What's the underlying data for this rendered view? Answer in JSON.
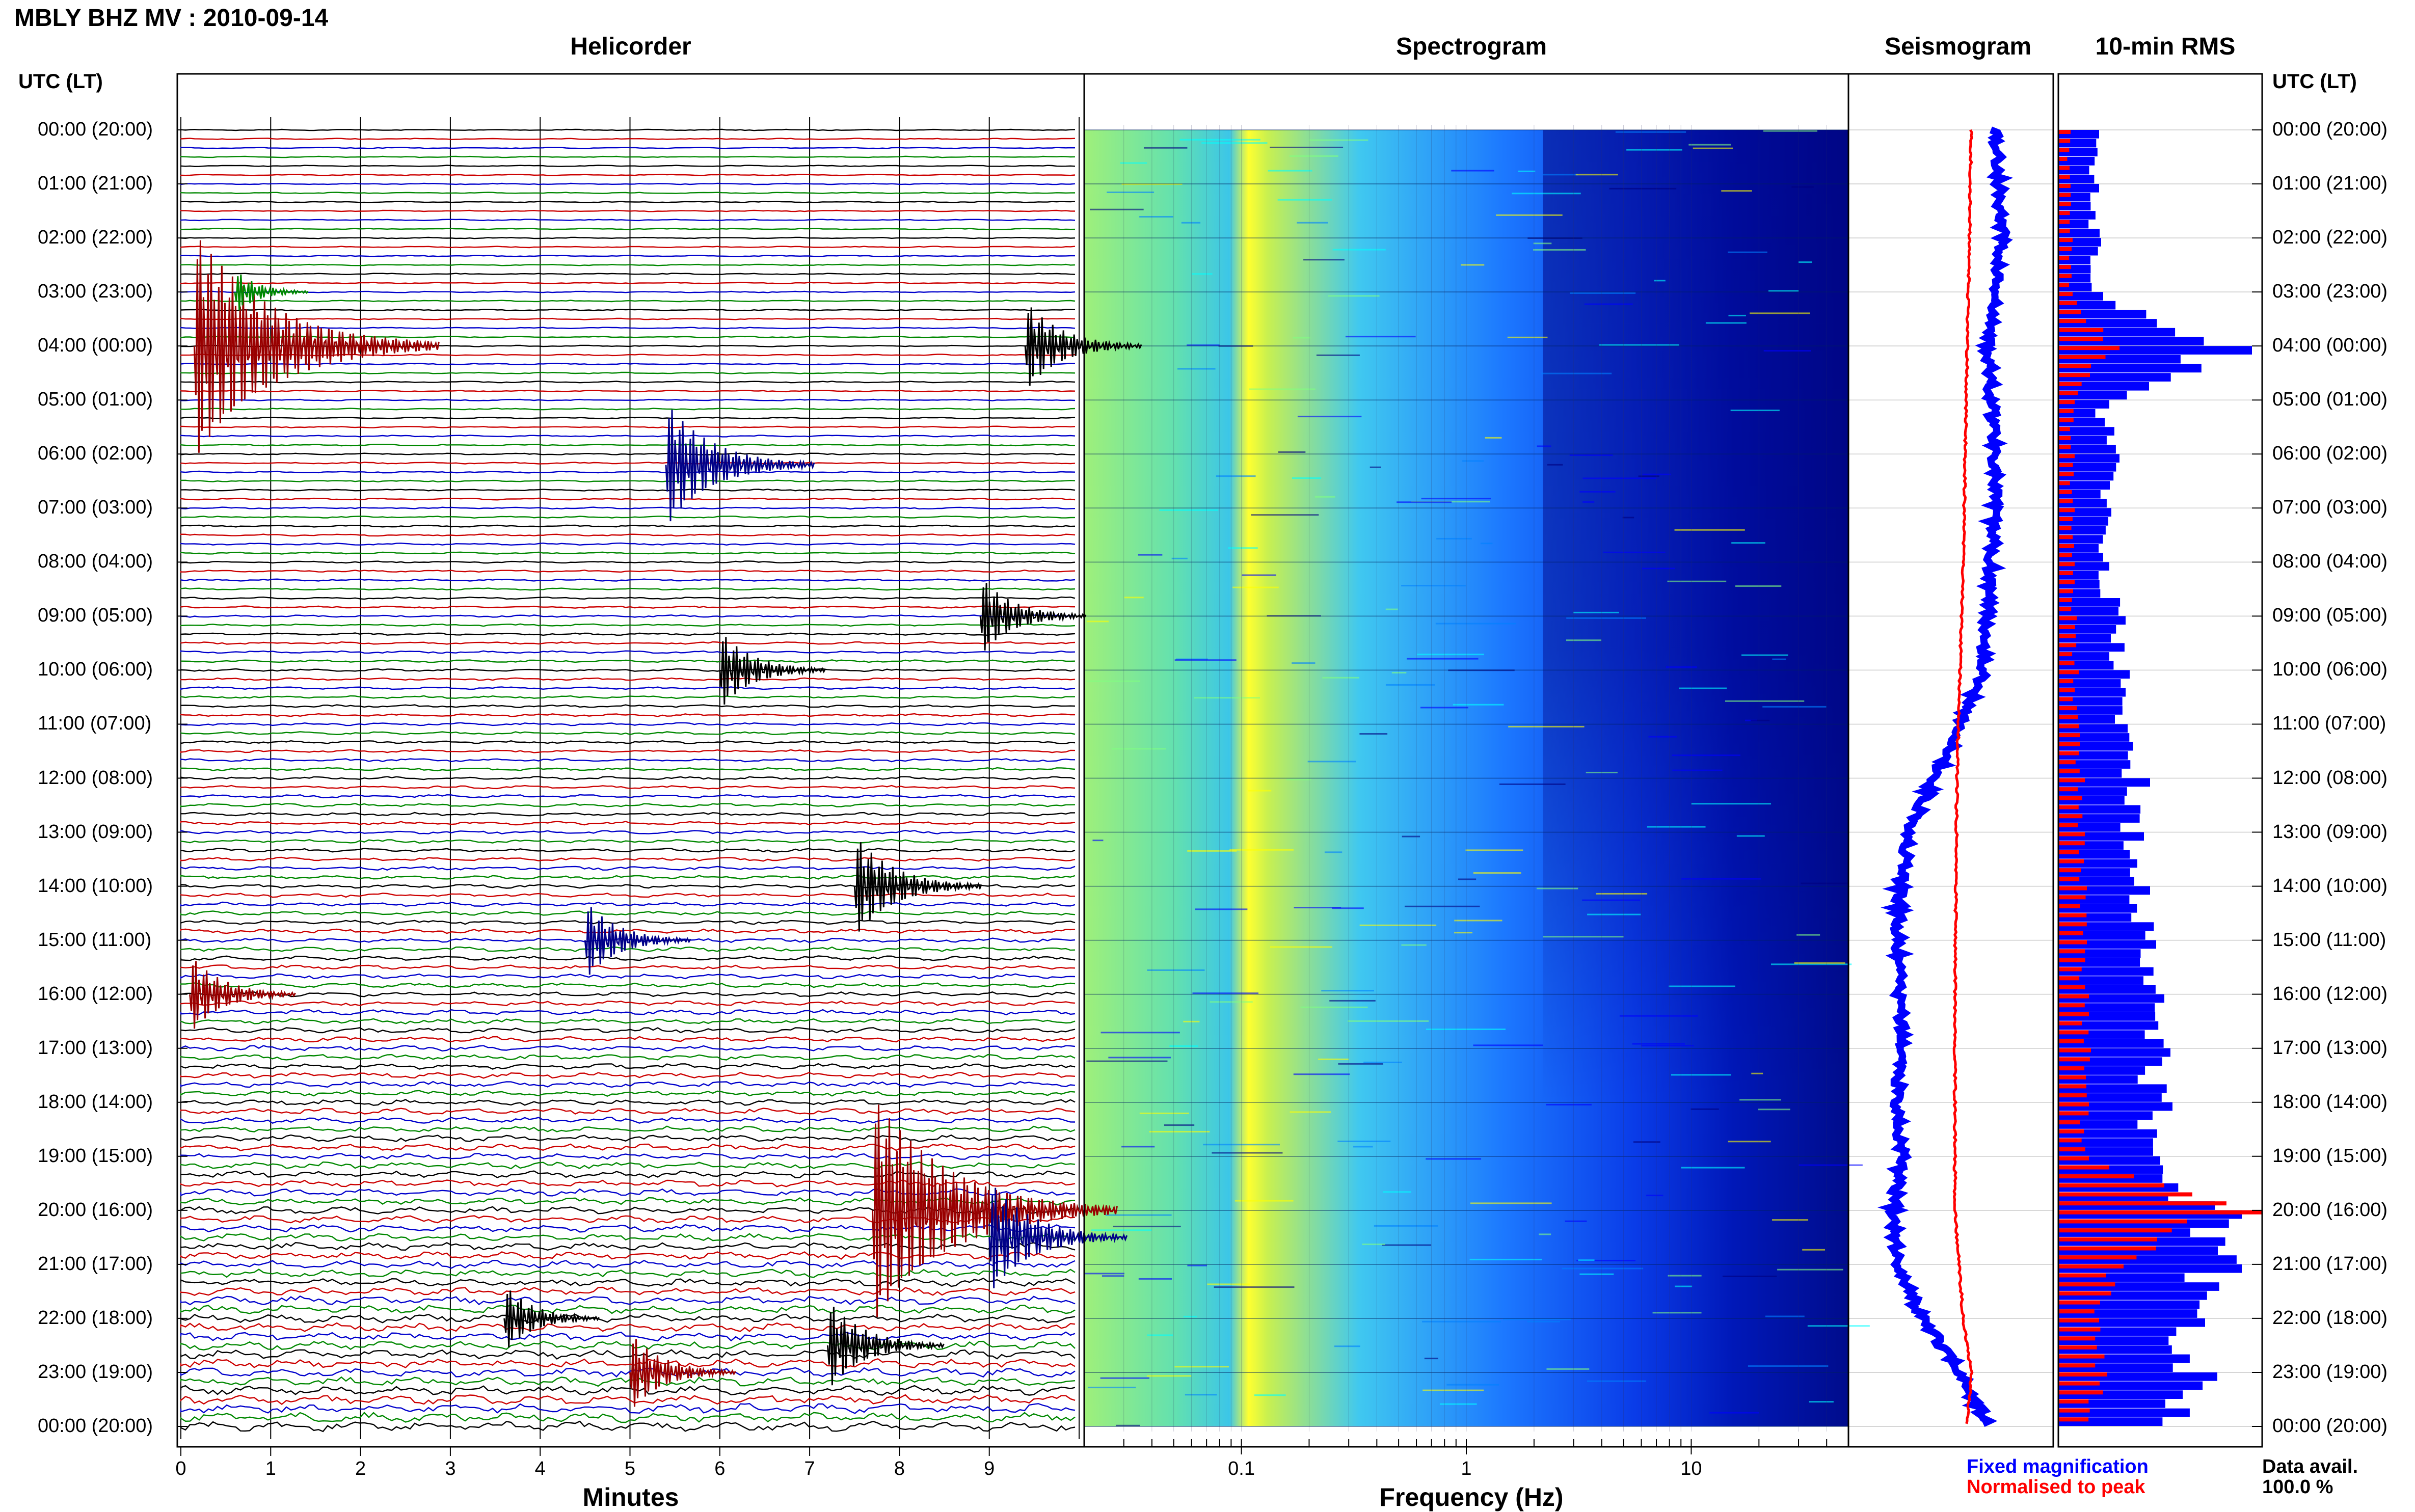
{
  "header": {
    "station_title": "MBLY BHZ MV : 2010-09-14",
    "utc_lt_label": "UTC (LT)"
  },
  "panels": {
    "helicorder": "Helicorder",
    "spectrogram": "Spectrogram",
    "seismogram": "Seismogram",
    "rms": "10-min RMS"
  },
  "time_labels": [
    "00:00 (20:00)",
    "01:00 (21:00)",
    "02:00 (22:00)",
    "03:00 (23:00)",
    "04:00 (00:00)",
    "05:00 (01:00)",
    "06:00 (02:00)",
    "07:00 (03:00)",
    "08:00 (04:00)",
    "09:00 (05:00)",
    "10:00 (06:00)",
    "11:00 (07:00)",
    "12:00 (08:00)",
    "13:00 (09:00)",
    "14:00 (10:00)",
    "15:00 (11:00)",
    "16:00 (12:00)",
    "17:00 (13:00)",
    "18:00 (14:00)",
    "19:00 (15:00)",
    "20:00 (16:00)",
    "21:00 (17:00)",
    "22:00 (18:00)",
    "23:00 (19:00)",
    "00:00 (20:00)"
  ],
  "legend": {
    "fixed": "Fixed magnification",
    "normalised": "Normalised to peak",
    "data_avail_label": "Data avail.",
    "data_avail_value": "100.0 %",
    "fixed_color": "#0000ff",
    "normalised_color": "#ff0000"
  },
  "chart_data": [
    {
      "type": "line",
      "title": "Helicorder",
      "xlabel": "Minutes",
      "xlim": [
        0,
        10
      ],
      "x_ticks": [
        "0",
        "1",
        "2",
        "3",
        "4",
        "5",
        "6",
        "7",
        "8",
        "9"
      ],
      "ylabel": "UTC (LT)",
      "rows_per_hour": 6,
      "row_colors": [
        "#000000",
        "#cc0000",
        "#0000cc",
        "#008800"
      ],
      "events": [
        {
          "hour": 4.0,
          "minute": 0.15,
          "amplitude": 1.0,
          "color": "#990000"
        },
        {
          "hour": 3.0,
          "minute": 0.6,
          "amplitude": 0.2,
          "color": "#008800"
        },
        {
          "hour": 4.0,
          "minute": 9.4,
          "amplitude": 0.4,
          "color": "#000000"
        },
        {
          "hour": 6.2,
          "minute": 5.4,
          "amplitude": 0.55,
          "color": "#000088"
        },
        {
          "hour": 9.0,
          "minute": 8.9,
          "amplitude": 0.35,
          "color": "#000000"
        },
        {
          "hour": 10.0,
          "minute": 6.0,
          "amplitude": 0.35,
          "color": "#000000"
        },
        {
          "hour": 14.0,
          "minute": 7.5,
          "amplitude": 0.45,
          "color": "#000000"
        },
        {
          "hour": 15.0,
          "minute": 4.5,
          "amplitude": 0.35,
          "color": "#000088"
        },
        {
          "hour": 16.0,
          "minute": 0.1,
          "amplitude": 0.35,
          "color": "#990000"
        },
        {
          "hour": 20.0,
          "minute": 7.7,
          "amplitude": 1.0,
          "color": "#990000"
        },
        {
          "hour": 20.5,
          "minute": 9.0,
          "amplitude": 0.5,
          "color": "#000088"
        },
        {
          "hour": 22.0,
          "minute": 3.6,
          "amplitude": 0.3,
          "color": "#000000"
        },
        {
          "hour": 22.5,
          "minute": 7.2,
          "amplitude": 0.4,
          "color": "#000000"
        },
        {
          "hour": 23.0,
          "minute": 5.0,
          "amplitude": 0.35,
          "color": "#990000"
        }
      ]
    },
    {
      "type": "heatmap",
      "title": "Spectrogram",
      "xlabel": "Frequency (Hz)",
      "x_scale": "log",
      "xlim": [
        0.02,
        50
      ],
      "x_ticks": [
        0.1,
        1,
        10
      ],
      "x_tick_labels": [
        "0.1",
        "1",
        "10"
      ],
      "colormap": [
        "#00007f",
        "#0000ff",
        "#0080ff",
        "#00ffff",
        "#80ff80",
        "#ffff00"
      ]
    },
    {
      "type": "line",
      "title": "Seismogram",
      "series": [
        {
          "name": "Fixed magnification",
          "color": "#0000ff",
          "hours": [
            0,
            2,
            4,
            6,
            8,
            10,
            11,
            12,
            13,
            14,
            15,
            16,
            17,
            18,
            19,
            20,
            21,
            22,
            23,
            24
          ],
          "values": [
            0.72,
            0.75,
            0.68,
            0.72,
            0.7,
            0.66,
            0.55,
            0.42,
            0.3,
            0.25,
            0.24,
            0.25,
            0.26,
            0.24,
            0.26,
            0.22,
            0.24,
            0.36,
            0.55,
            0.68
          ]
        },
        {
          "name": "Normalised to peak",
          "color": "#ff0000",
          "hours": [
            0,
            4,
            8,
            12,
            16,
            20,
            22,
            23,
            24
          ],
          "values": [
            0.6,
            0.58,
            0.56,
            0.53,
            0.52,
            0.52,
            0.56,
            0.6,
            0.58
          ]
        }
      ]
    },
    {
      "type": "bar",
      "title": "10-min RMS",
      "orientation": "horizontal",
      "series": [
        {
          "name": "Fixed magnification",
          "color": "#0000ff",
          "hours": [
            0,
            1,
            2,
            3,
            4,
            5,
            6,
            7,
            8,
            9,
            10,
            11,
            12,
            13,
            14,
            15,
            16,
            17,
            18,
            19,
            20,
            21,
            22,
            23,
            24
          ],
          "values": [
            0.2,
            0.2,
            0.21,
            0.22,
            0.95,
            0.25,
            0.3,
            0.26,
            0.25,
            0.33,
            0.35,
            0.34,
            0.45,
            0.42,
            0.45,
            0.48,
            0.52,
            0.55,
            0.56,
            0.5,
            0.9,
            0.9,
            0.72,
            0.78,
            0.68
          ]
        },
        {
          "name": "Normalised to peak",
          "color": "#ff0000",
          "hours": [
            0,
            1,
            2,
            3,
            4,
            5,
            6,
            7,
            8,
            9,
            10,
            11,
            12,
            13,
            14,
            15,
            16,
            17,
            18,
            19,
            20,
            21,
            22,
            23,
            24
          ],
          "values": [
            0.06,
            0.06,
            0.07,
            0.07,
            0.3,
            0.08,
            0.08,
            0.08,
            0.08,
            0.09,
            0.1,
            0.1,
            0.13,
            0.13,
            0.14,
            0.14,
            0.15,
            0.16,
            0.15,
            0.15,
            1.0,
            0.32,
            0.2,
            0.24,
            0.18
          ]
        }
      ]
    }
  ]
}
